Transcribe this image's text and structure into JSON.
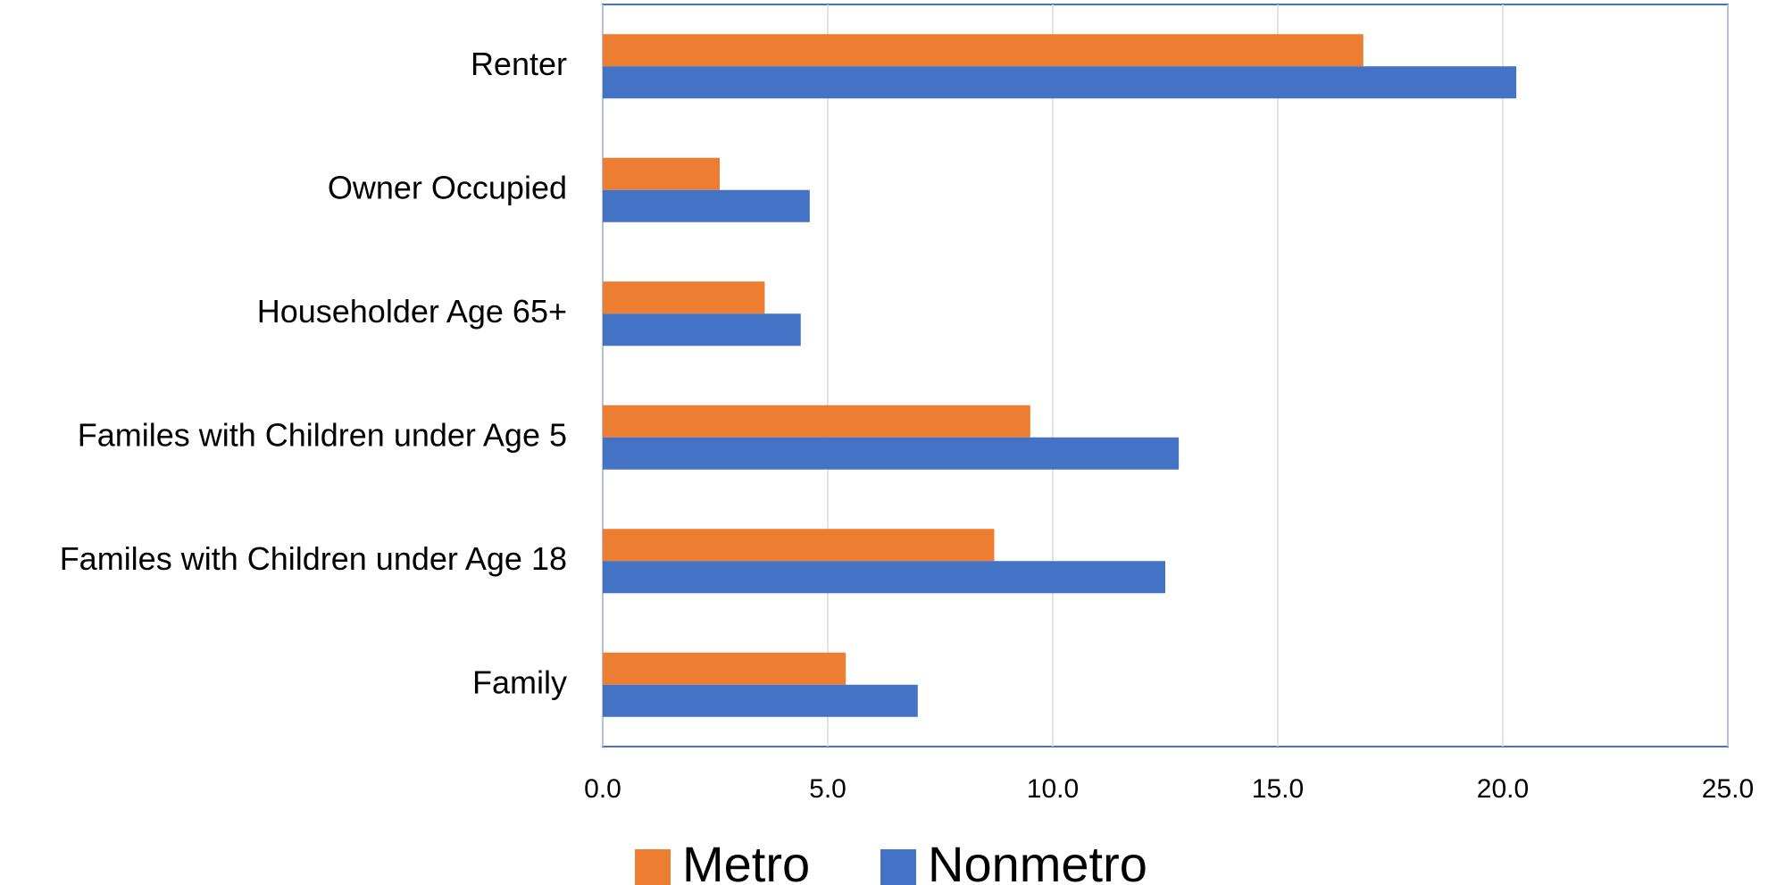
{
  "chart_data": {
    "type": "hbar",
    "categories": [
      "Renter",
      "Owner Occupied",
      "Householder Age 65+",
      "Familes with Children under Age 5",
      "Familes with Children under Age 18",
      "Family"
    ],
    "series": [
      {
        "name": "Metro",
        "color": "#ed7d31",
        "values": [
          16.9,
          2.6,
          3.6,
          9.5,
          8.7,
          5.4
        ]
      },
      {
        "name": "Nonmetro",
        "color": "#4472c4",
        "values": [
          20.3,
          4.6,
          4.4,
          12.8,
          12.5,
          7.0
        ]
      }
    ],
    "xlim": [
      0,
      25
    ],
    "xticks": [
      {
        "value": 0,
        "label": "0.0"
      },
      {
        "value": 5,
        "label": "5.0"
      },
      {
        "value": 10,
        "label": "10.0"
      },
      {
        "value": 15,
        "label": "15.0"
      },
      {
        "value": 20,
        "label": "20.0"
      },
      {
        "value": 25,
        "label": "25.0"
      }
    ],
    "grid": true,
    "legend": "bottom"
  }
}
